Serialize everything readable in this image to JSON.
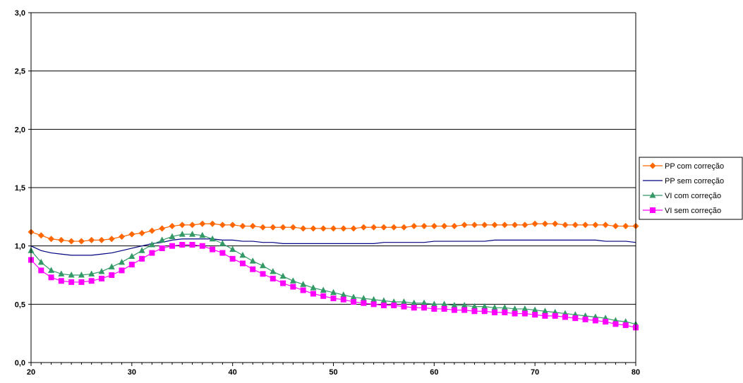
{
  "chart_data": {
    "type": "line",
    "title": "",
    "xlabel": "",
    "ylabel": "",
    "xlim": [
      20,
      80
    ],
    "ylim": [
      0,
      3
    ],
    "xticks": [
      20,
      30,
      40,
      50,
      60,
      70,
      80
    ],
    "xtick_labels": [
      "20",
      "30",
      "40",
      "50",
      "60",
      "70",
      "80"
    ],
    "yticks": [
      0,
      0.5,
      1,
      1.5,
      2,
      2.5,
      3
    ],
    "ytick_labels": [
      "0,0",
      "0,5",
      "1,0",
      "1,5",
      "2,0",
      "2,5",
      "3,0"
    ],
    "grid": "horizontal",
    "legend_position": "right",
    "x": [
      20,
      21,
      22,
      23,
      24,
      25,
      26,
      27,
      28,
      29,
      30,
      31,
      32,
      33,
      34,
      35,
      36,
      37,
      38,
      39,
      40,
      41,
      42,
      43,
      44,
      45,
      46,
      47,
      48,
      49,
      50,
      51,
      52,
      53,
      54,
      55,
      56,
      57,
      58,
      59,
      60,
      61,
      62,
      63,
      64,
      65,
      66,
      67,
      68,
      69,
      70,
      71,
      72,
      73,
      74,
      75,
      76,
      77,
      78,
      79,
      80
    ],
    "series": [
      {
        "name": "PP com correção",
        "color": "#FF6600",
        "marker": "diamond",
        "values": [
          1.12,
          1.09,
          1.06,
          1.05,
          1.04,
          1.04,
          1.05,
          1.05,
          1.06,
          1.08,
          1.1,
          1.11,
          1.13,
          1.15,
          1.17,
          1.18,
          1.18,
          1.19,
          1.19,
          1.18,
          1.18,
          1.17,
          1.17,
          1.16,
          1.16,
          1.16,
          1.16,
          1.15,
          1.15,
          1.15,
          1.15,
          1.15,
          1.15,
          1.16,
          1.16,
          1.16,
          1.16,
          1.16,
          1.17,
          1.17,
          1.17,
          1.17,
          1.17,
          1.18,
          1.18,
          1.18,
          1.18,
          1.18,
          1.18,
          1.18,
          1.19,
          1.19,
          1.19,
          1.18,
          1.18,
          1.18,
          1.18,
          1.18,
          1.17,
          1.17,
          1.17
        ]
      },
      {
        "name": "PP sem correção",
        "color": "#000080",
        "marker": "none",
        "values": [
          1.0,
          0.96,
          0.94,
          0.93,
          0.92,
          0.92,
          0.92,
          0.93,
          0.94,
          0.96,
          0.98,
          1.0,
          1.02,
          1.03,
          1.05,
          1.06,
          1.06,
          1.06,
          1.06,
          1.05,
          1.05,
          1.04,
          1.04,
          1.03,
          1.03,
          1.02,
          1.02,
          1.02,
          1.02,
          1.02,
          1.02,
          1.02,
          1.02,
          1.02,
          1.02,
          1.03,
          1.03,
          1.03,
          1.03,
          1.03,
          1.04,
          1.04,
          1.04,
          1.04,
          1.04,
          1.04,
          1.05,
          1.05,
          1.05,
          1.05,
          1.05,
          1.05,
          1.05,
          1.05,
          1.05,
          1.05,
          1.05,
          1.04,
          1.04,
          1.04,
          1.03
        ]
      },
      {
        "name": "VI com correção",
        "color": "#339966",
        "marker": "triangle",
        "values": [
          0.96,
          0.86,
          0.79,
          0.76,
          0.75,
          0.75,
          0.76,
          0.78,
          0.82,
          0.86,
          0.91,
          0.96,
          1.01,
          1.05,
          1.08,
          1.1,
          1.1,
          1.09,
          1.06,
          1.02,
          0.97,
          0.92,
          0.87,
          0.83,
          0.78,
          0.74,
          0.7,
          0.67,
          0.64,
          0.62,
          0.6,
          0.58,
          0.56,
          0.55,
          0.54,
          0.53,
          0.52,
          0.52,
          0.51,
          0.51,
          0.5,
          0.5,
          0.49,
          0.49,
          0.48,
          0.48,
          0.47,
          0.47,
          0.46,
          0.46,
          0.45,
          0.44,
          0.43,
          0.42,
          0.41,
          0.4,
          0.39,
          0.38,
          0.36,
          0.35,
          0.33
        ]
      },
      {
        "name": "VI sem correção",
        "color": "#FF00FF",
        "marker": "square",
        "values": [
          0.88,
          0.79,
          0.73,
          0.7,
          0.69,
          0.69,
          0.7,
          0.72,
          0.75,
          0.79,
          0.84,
          0.89,
          0.94,
          0.98,
          1.0,
          1.01,
          1.01,
          1.0,
          0.97,
          0.94,
          0.89,
          0.85,
          0.8,
          0.76,
          0.72,
          0.68,
          0.65,
          0.62,
          0.59,
          0.57,
          0.55,
          0.54,
          0.52,
          0.51,
          0.5,
          0.49,
          0.49,
          0.48,
          0.47,
          0.47,
          0.46,
          0.46,
          0.45,
          0.45,
          0.44,
          0.44,
          0.43,
          0.43,
          0.42,
          0.42,
          0.41,
          0.4,
          0.4,
          0.39,
          0.38,
          0.37,
          0.36,
          0.35,
          0.33,
          0.32,
          0.3
        ]
      }
    ]
  }
}
